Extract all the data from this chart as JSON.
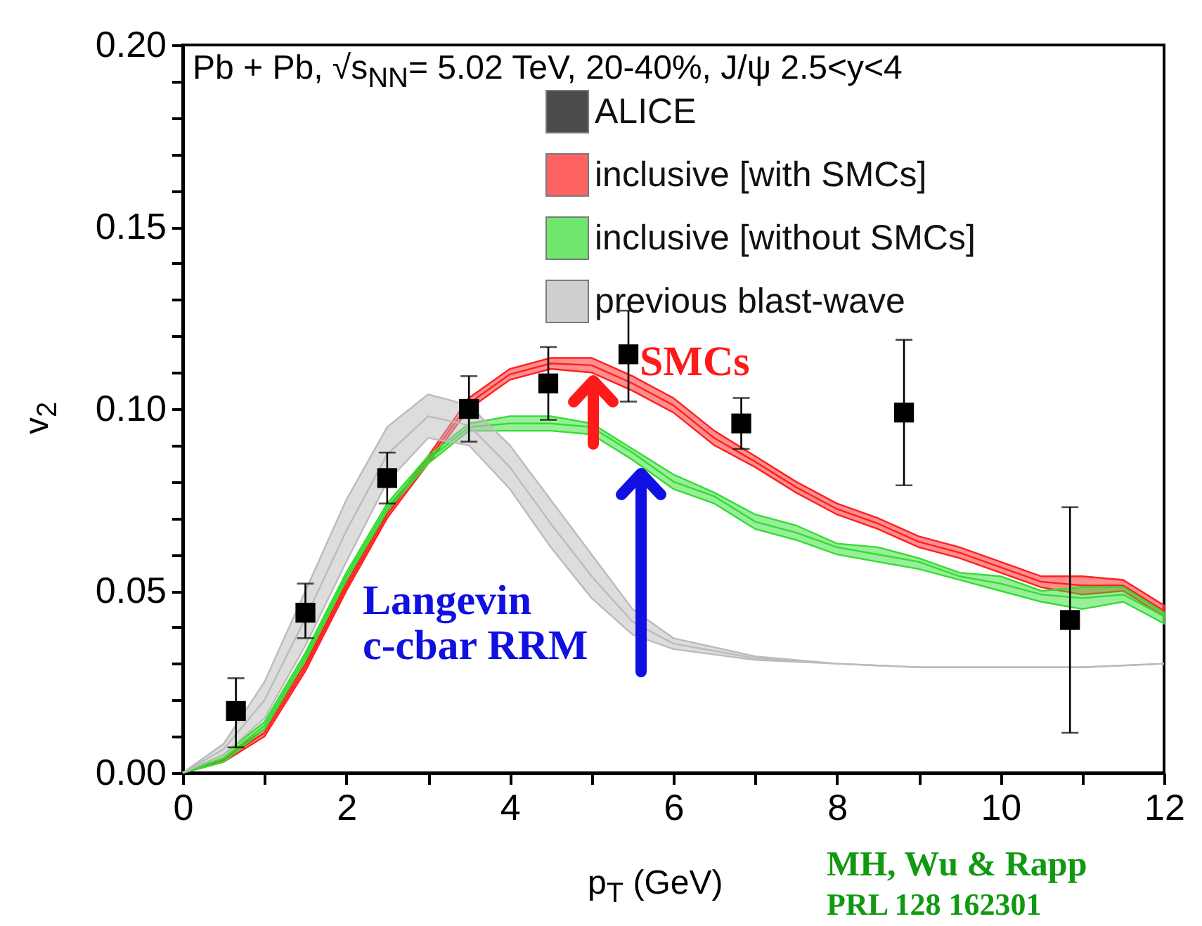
{
  "chart_data": {
    "type": "line",
    "title": "Pb + Pb, √s$_{NN}$= 5.02 TeV, 20-40%, J/ψ 2.5<y<4",
    "xlabel": "p$_{T}$ (GeV)",
    "ylabel": "v$_{2}$",
    "annotations": [
      "SMCs",
      "Langevin\nc-cbar RRM",
      "MH, Wu & Rapp",
      "PRL 128 162301"
    ],
    "xlim": [
      0,
      12
    ],
    "ylim": [
      0,
      0.2
    ],
    "xticks": [
      0,
      {
        "value": 1,
        "label": null
      },
      2,
      {
        "value": 3,
        "label": null
      },
      4,
      {
        "value": 5,
        "label": null
      },
      6,
      {
        "value": 7,
        "label": null
      },
      8,
      {
        "value": 9,
        "label": null
      },
      10,
      {
        "value": 11,
        "label": null
      },
      12
    ],
    "yticks": [
      {
        "value": 0,
        "label": "0.00"
      },
      {
        "value": 0.01,
        "label": null
      },
      {
        "value": 0.02,
        "label": null
      },
      {
        "value": 0.03,
        "label": null
      },
      {
        "value": 0.04,
        "label": null
      },
      {
        "value": 0.05,
        "label": "0.05"
      },
      {
        "value": 0.06,
        "label": null
      },
      {
        "value": 0.07,
        "label": null
      },
      {
        "value": 0.08,
        "label": null
      },
      {
        "value": 0.09,
        "label": null
      },
      {
        "value": 0.1,
        "label": "0.10"
      },
      {
        "value": 0.11,
        "label": null
      },
      {
        "value": 0.12,
        "label": null
      },
      {
        "value": 0.13,
        "label": null
      },
      {
        "value": 0.14,
        "label": null
      },
      {
        "value": 0.15,
        "label": "0.15"
      },
      {
        "value": 0.16,
        "label": null
      },
      {
        "value": 0.17,
        "label": null
      },
      {
        "value": 0.18,
        "label": null
      },
      {
        "value": 0.19,
        "label": null
      },
      {
        "value": 0.2,
        "label": "0.20"
      }
    ],
    "legend": "top right",
    "series": [
      {
        "name": "ALICE",
        "type": "scatter",
        "marker": "square",
        "color": "#000000",
        "x": [
          0.65,
          1.5,
          2.5,
          3.5,
          4.47,
          5.45,
          6.83,
          8.82,
          10.85
        ],
        "values": [
          0.017,
          0.044,
          0.081,
          0.1,
          0.107,
          0.115,
          0.096,
          0.099,
          0.042
        ],
        "errors": [
          [
            0.007,
            0.026
          ],
          [
            0.037,
            0.052
          ],
          [
            0.074,
            0.088
          ],
          [
            0.091,
            0.109
          ],
          [
            0.097,
            0.117
          ],
          [
            0.102,
            0.127
          ],
          [
            0.089,
            0.103
          ],
          [
            0.079,
            0.119
          ],
          [
            0.011,
            0.073
          ]
        ]
      },
      {
        "name": "inclusive [with SMCs]",
        "color": "#ff2020",
        "x": [
          0,
          0.5,
          1,
          1.5,
          2,
          2.5,
          3,
          3.5,
          4,
          4.5,
          5,
          5.5,
          6,
          6.5,
          7,
          7.5,
          8,
          8.5,
          9,
          9.5,
          10,
          10.5,
          11,
          11.5,
          12
        ],
        "values": [
          0,
          0.0035,
          0.011,
          0.029,
          0.051,
          0.071,
          0.086,
          0.1015,
          0.1095,
          0.1125,
          0.112,
          0.107,
          0.101,
          0.092,
          0.0855,
          0.0785,
          0.0725,
          0.0685,
          0.0635,
          0.0605,
          0.0565,
          0.0525,
          0.0515,
          0.0515,
          0.0445
        ],
        "lower": [
          0,
          0.003,
          0.01,
          0.028,
          0.05,
          0.07,
          0.085,
          0.1,
          0.108,
          0.111,
          0.11,
          0.105,
          0.099,
          0.09,
          0.084,
          0.077,
          0.071,
          0.067,
          0.062,
          0.059,
          0.055,
          0.051,
          0.049,
          0.05,
          0.043
        ],
        "upper": [
          0,
          0.004,
          0.012,
          0.03,
          0.052,
          0.072,
          0.087,
          0.103,
          0.111,
          0.114,
          0.114,
          0.109,
          0.103,
          0.094,
          0.087,
          0.08,
          0.074,
          0.07,
          0.065,
          0.062,
          0.058,
          0.054,
          0.054,
          0.053,
          0.046
        ]
      },
      {
        "name": "inclusive [without SMCs]",
        "color": "#33dd33",
        "x": [
          0,
          0.5,
          1,
          1.5,
          2,
          2.5,
          3,
          3.5,
          4,
          4.5,
          5,
          5.5,
          6,
          6.5,
          7,
          7.5,
          8,
          8.5,
          9,
          9.5,
          10,
          10.5,
          11,
          11.5,
          12
        ],
        "values": [
          0,
          0.004,
          0.013,
          0.032,
          0.054,
          0.073,
          0.086,
          0.095,
          0.096,
          0.096,
          0.095,
          0.088,
          0.08,
          0.076,
          0.069,
          0.066,
          0.062,
          0.06,
          0.058,
          0.054,
          0.052,
          0.049,
          0.048,
          0.049,
          0.043
        ],
        "lower": [
          0,
          0.003,
          0.012,
          0.031,
          0.053,
          0.072,
          0.085,
          0.094,
          0.094,
          0.094,
          0.093,
          0.086,
          0.078,
          0.074,
          0.067,
          0.064,
          0.06,
          0.058,
          0.056,
          0.053,
          0.05,
          0.047,
          0.045,
          0.047,
          0.041
        ],
        "upper": [
          0,
          0.005,
          0.014,
          0.033,
          0.055,
          0.074,
          0.087,
          0.096,
          0.098,
          0.098,
          0.096,
          0.089,
          0.082,
          0.077,
          0.071,
          0.068,
          0.063,
          0.062,
          0.059,
          0.055,
          0.054,
          0.05,
          0.051,
          0.051,
          0.044
        ]
      },
      {
        "name": "previous blast-wave",
        "color": "#bbbbbb",
        "x": [
          0,
          0.5,
          1,
          1.5,
          2,
          2.5,
          3,
          3.5,
          4,
          4.5,
          5,
          5.5,
          6,
          7,
          8,
          9,
          10,
          11,
          12
        ],
        "values": [
          0,
          0.0065,
          0.02,
          0.0425,
          0.0665,
          0.0875,
          0.098,
          0.0955,
          0.084,
          0.0685,
          0.054,
          0.0415,
          0.0355,
          0.0315,
          0.03,
          0.029,
          0.029,
          0.029,
          0.03
        ],
        "lower": [
          0,
          0.005,
          0.015,
          0.035,
          0.058,
          0.08,
          0.092,
          0.09,
          0.078,
          0.062,
          0.048,
          0.038,
          0.034,
          0.031,
          0.03,
          0.029,
          0.029,
          0.029,
          0.03
        ],
        "upper": [
          0,
          0.008,
          0.025,
          0.05,
          0.075,
          0.095,
          0.104,
          0.101,
          0.09,
          0.075,
          0.06,
          0.045,
          0.037,
          0.032,
          0.03,
          0.029,
          0.029,
          0.029,
          0.03
        ]
      }
    ]
  }
}
